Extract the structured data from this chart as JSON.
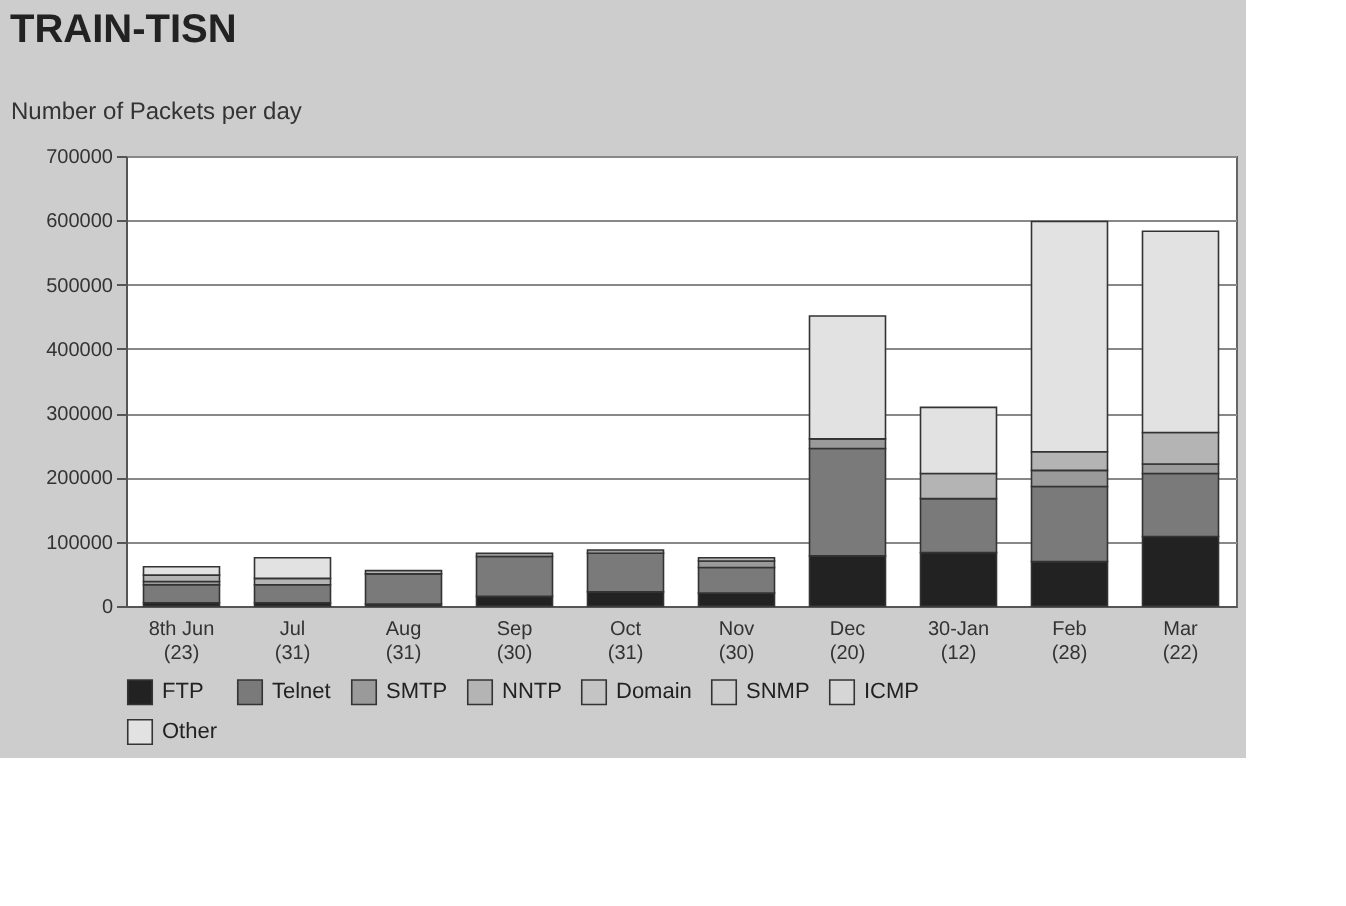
{
  "chart_data": {
    "type": "bar",
    "title": "TRAIN-TISN",
    "ylabel": "Number of Packets per day",
    "stacked": true,
    "categories": [
      "8th Jun\n(23)",
      "Jul\n(31)",
      "Aug\n(31)",
      "Sep\n(30)",
      "Oct\n(31)",
      "Nov\n(30)",
      "Dec\n(20)",
      "30-Jan\n(12)",
      "Feb\n(28)",
      "Mar\n(22)"
    ],
    "series": [
      {
        "name": "FTP",
        "color": "#222222",
        "values": [
          5000,
          5000,
          3000,
          15000,
          22000,
          20000,
          78000,
          83000,
          69000,
          108000
        ]
      },
      {
        "name": "Telnet",
        "color": "#7a7a7a",
        "values": [
          28000,
          28000,
          47000,
          62000,
          60000,
          40000,
          167000,
          84000,
          117000,
          98000
        ]
      },
      {
        "name": "SMTP",
        "color": "#9a9a9a",
        "values": [
          5000,
          0,
          0,
          5000,
          5000,
          10000,
          15000,
          0,
          25000,
          15000
        ]
      },
      {
        "name": "NNTP",
        "color": "#b4b4b4",
        "values": [
          10000,
          10000,
          5000,
          0,
          0,
          5000,
          0,
          39000,
          29000,
          49000
        ]
      },
      {
        "name": "Domain",
        "color": "#c4c4c4",
        "values": [
          0,
          0,
          0,
          0,
          0,
          0,
          0,
          0,
          0,
          0
        ]
      },
      {
        "name": "SNMP",
        "color": "#cdcdcd",
        "values": [
          0,
          0,
          0,
          0,
          0,
          0,
          0,
          0,
          0,
          0
        ]
      },
      {
        "name": "ICMP",
        "color": "#d6d6d6",
        "values": [
          0,
          0,
          0,
          0,
          0,
          0,
          0,
          0,
          0,
          0
        ]
      },
      {
        "name": "Other",
        "color": "#e2e2e2",
        "values": [
          13000,
          32000,
          0,
          0,
          0,
          0,
          191000,
          103000,
          358000,
          313000
        ]
      }
    ],
    "ylim": [
      0,
      700000
    ],
    "yticks": [
      0,
      100000,
      200000,
      300000,
      400000,
      500000,
      600000,
      700000
    ],
    "grid": "y",
    "legend": "bottom"
  }
}
